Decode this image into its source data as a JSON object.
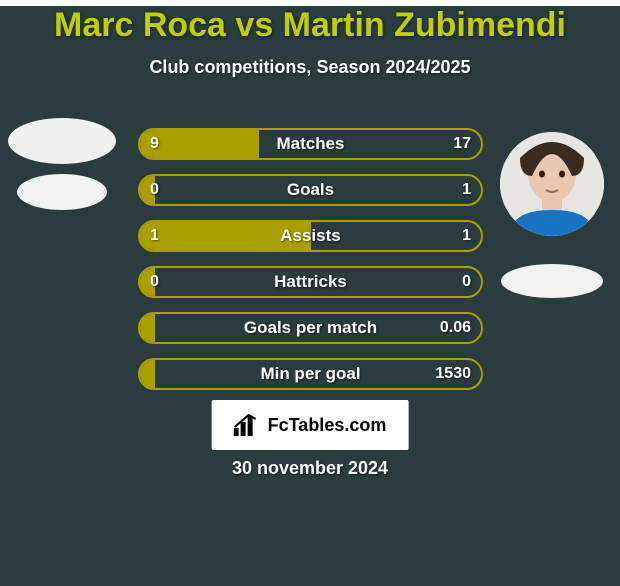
{
  "background_color": "#2c3b3d",
  "title": {
    "text": "Marc Roca vs Martin Zubimendi",
    "color": "#bfcf00",
    "fontsize": 34
  },
  "subtitle": {
    "text": "Club competitions, Season 2024/2025",
    "color": "#ffffff",
    "fontsize": 18
  },
  "players": {
    "left": {
      "name": "Marc Roca",
      "avatar_diameter": 108,
      "avatar_blank": true,
      "badge_blank": true
    },
    "right": {
      "name": "Martin Zubimendi",
      "avatar_diameter": 104,
      "avatar_blank": false,
      "badge_blank": true
    }
  },
  "comparison": {
    "track_border_color": "#a9a000",
    "fill_color": "#a9a000",
    "value_color": "#ffffff",
    "label_color": "#ffffff",
    "label_fontsize": 17,
    "value_fontsize": 16,
    "rows": [
      {
        "label": "Matches",
        "left": "9",
        "right": "17",
        "fill_pct": 35
      },
      {
        "label": "Goals",
        "left": "0",
        "right": "1",
        "fill_pct": 5
      },
      {
        "label": "Assists",
        "left": "1",
        "right": "1",
        "fill_pct": 50
      },
      {
        "label": "Hattricks",
        "left": "0",
        "right": "0",
        "fill_pct": 5
      },
      {
        "label": "Goals per match",
        "left": "",
        "right": "0.06",
        "fill_pct": 5
      },
      {
        "label": "Min per goal",
        "left": "",
        "right": "1530",
        "fill_pct": 5
      }
    ]
  },
  "footer": {
    "brand": "FcTables.com",
    "brand_fontsize": 18,
    "date": "30 november 2024",
    "date_color": "#ffffff",
    "date_fontsize": 18
  }
}
